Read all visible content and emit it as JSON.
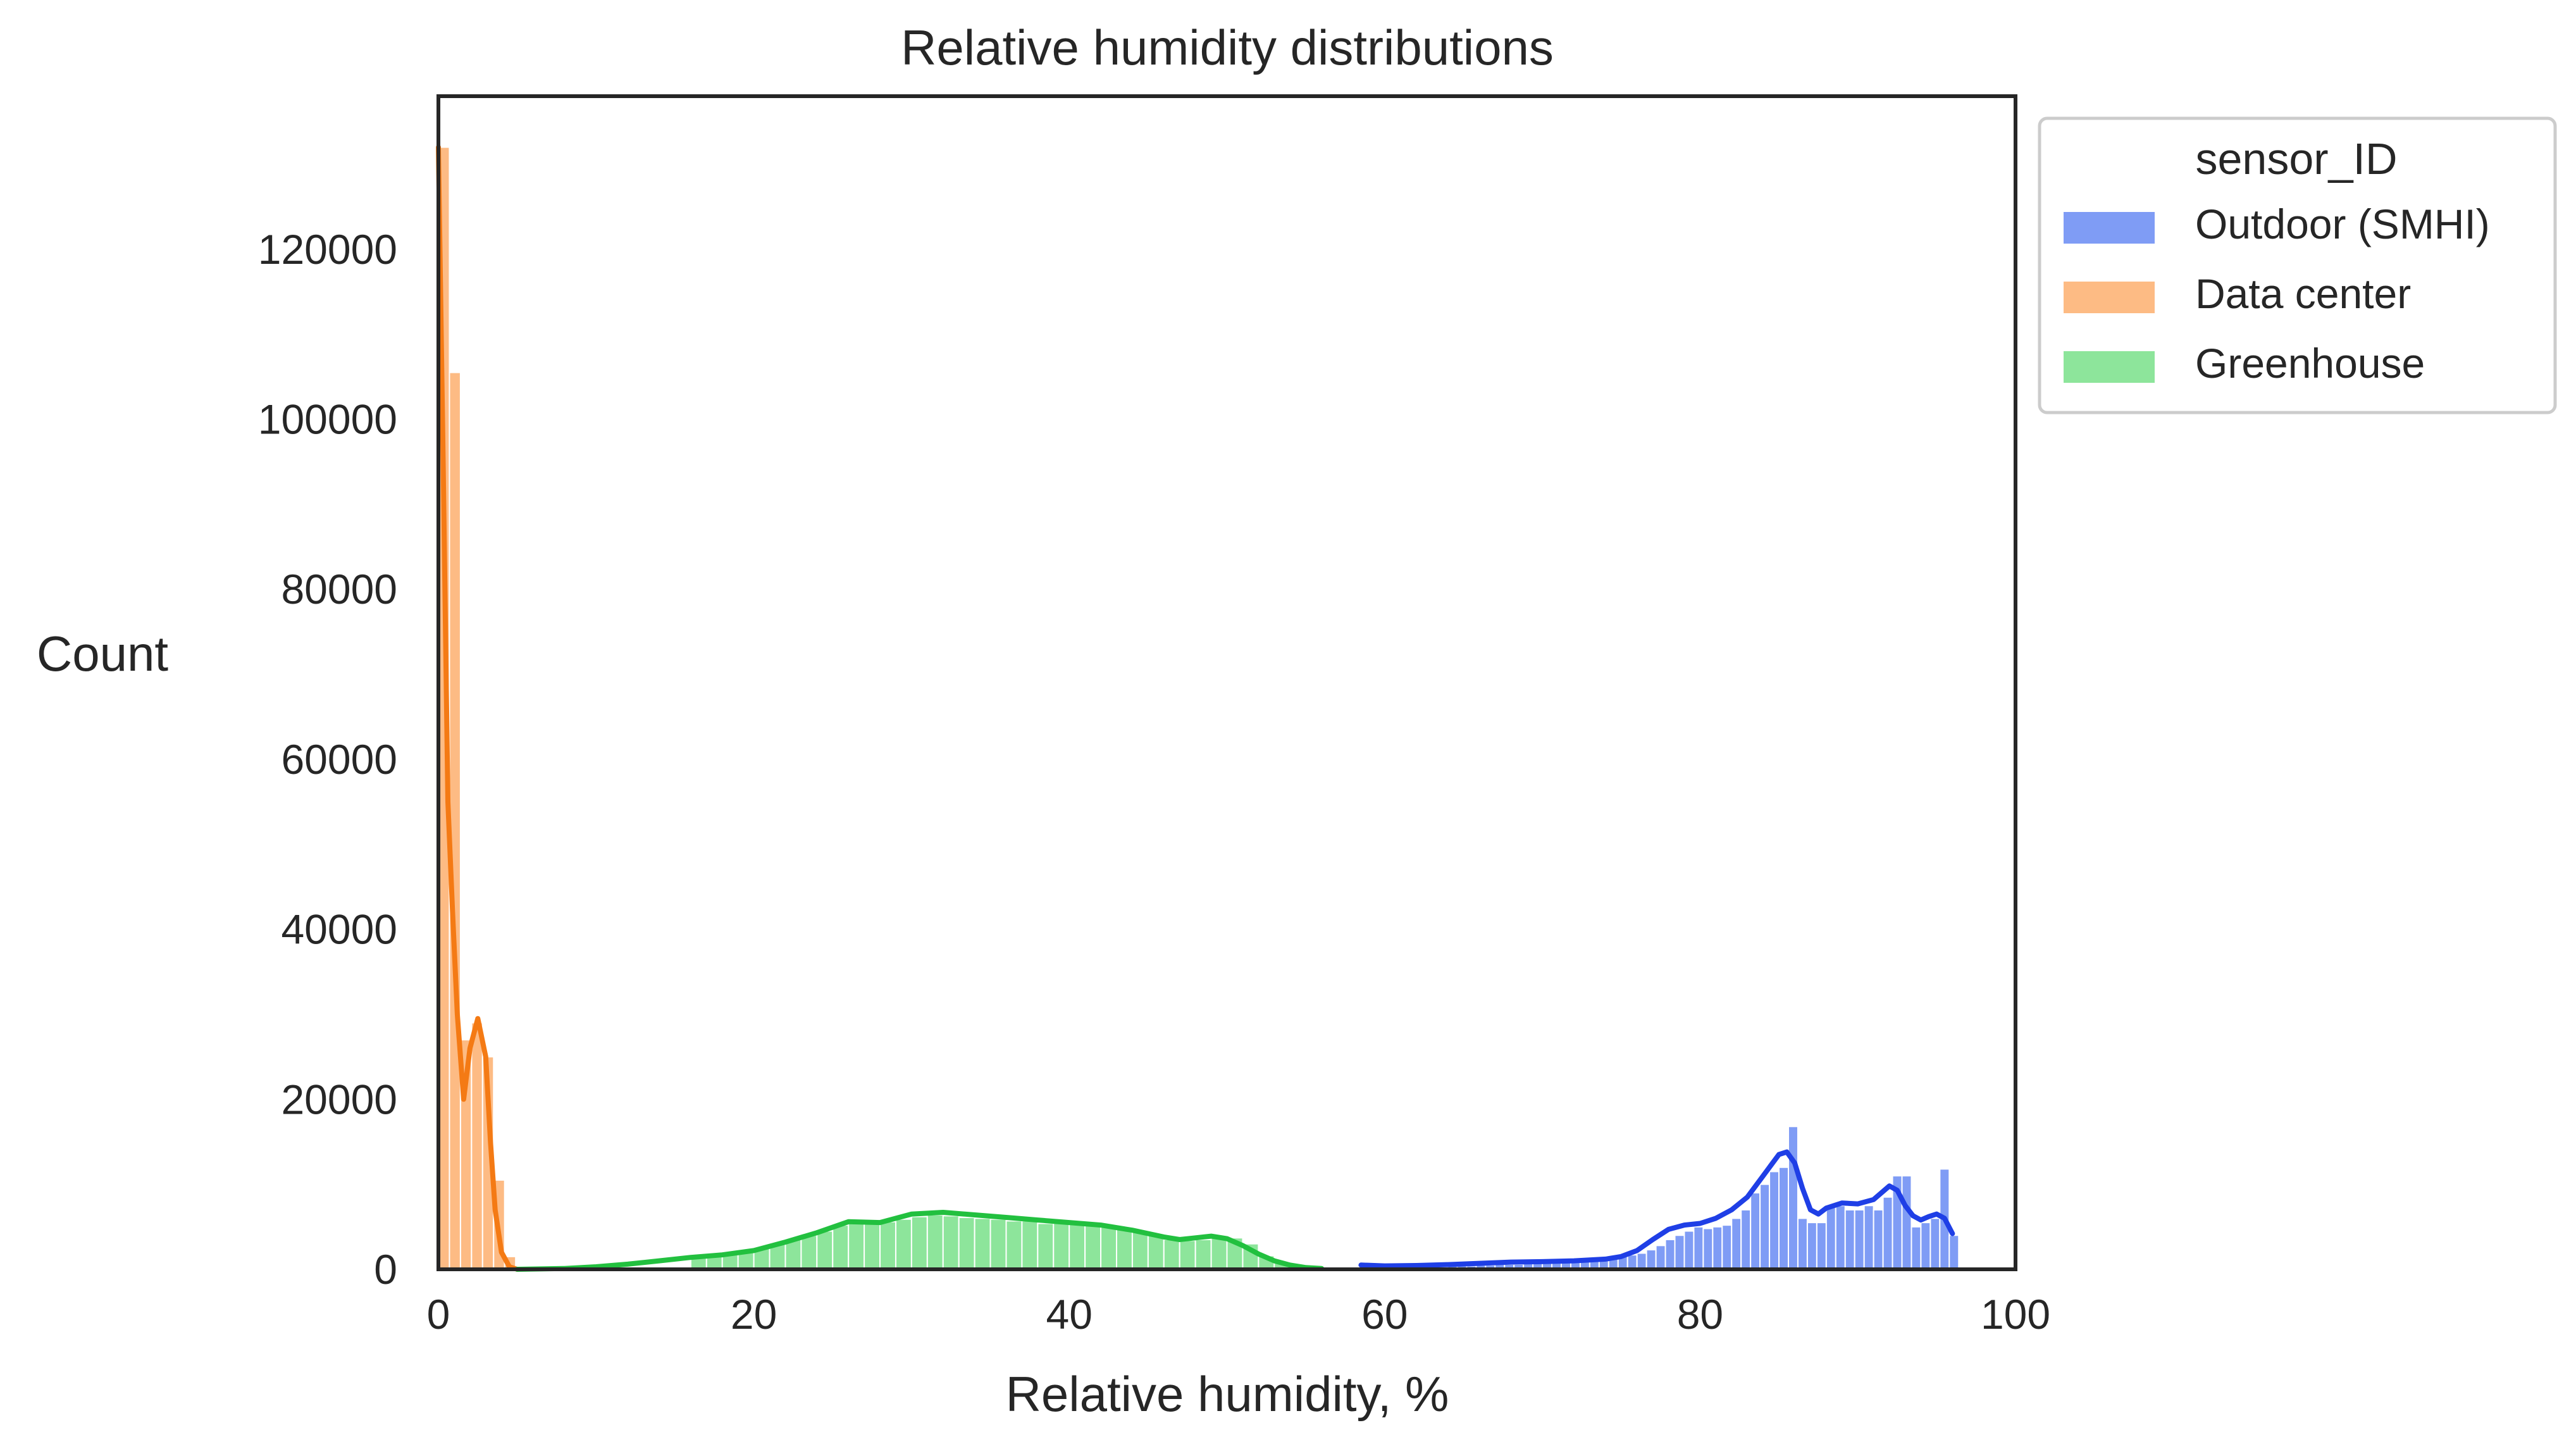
{
  "chart_data": {
    "type": "histogram",
    "title": "Relative humidity distributions",
    "xlabel": "Relative humidity, %",
    "ylabel": "Count",
    "xlim": [
      0,
      100
    ],
    "ylim": [
      0,
      138000
    ],
    "xticks": [
      0,
      20,
      40,
      60,
      80,
      100
    ],
    "yticks": [
      0,
      20000,
      40000,
      60000,
      80000,
      100000,
      120000
    ],
    "grid": false,
    "legend": {
      "title": "sensor_ID",
      "placement": "outside-top-right"
    },
    "series": [
      {
        "name": "Outdoor (SMHI)",
        "bar_color": "#7f9cf5",
        "kde_color": "#1f3fe6",
        "bins": [
          [
            58.6,
            59.2,
            300
          ],
          [
            59.2,
            59.8,
            300
          ],
          [
            59.8,
            60.4,
            300
          ],
          [
            60.4,
            61,
            200
          ],
          [
            61,
            61.6,
            200
          ],
          [
            61.6,
            62.2,
            300
          ],
          [
            62.2,
            62.8,
            300
          ],
          [
            62.8,
            63.4,
            300
          ],
          [
            63.4,
            64,
            300
          ],
          [
            64,
            64.6,
            400
          ],
          [
            64.6,
            65.2,
            400
          ],
          [
            65.2,
            65.8,
            400
          ],
          [
            65.8,
            66.4,
            500
          ],
          [
            66.4,
            67,
            500
          ],
          [
            67,
            67.6,
            600
          ],
          [
            67.6,
            68.2,
            600
          ],
          [
            68.2,
            68.8,
            600
          ],
          [
            68.8,
            69.4,
            700
          ],
          [
            69.4,
            70,
            700
          ],
          [
            70,
            70.6,
            800
          ],
          [
            70.6,
            71.2,
            800
          ],
          [
            71.2,
            71.8,
            900
          ],
          [
            71.8,
            72.4,
            1000
          ],
          [
            72.4,
            73,
            1100
          ],
          [
            73,
            73.6,
            1200
          ],
          [
            73.6,
            74.2,
            1300
          ],
          [
            74.2,
            74.8,
            1400
          ],
          [
            74.8,
            75.4,
            1500
          ],
          [
            75.4,
            76,
            1700
          ],
          [
            76,
            76.6,
            1900
          ],
          [
            76.6,
            77.2,
            2300
          ],
          [
            77.2,
            77.8,
            2800
          ],
          [
            77.8,
            78.4,
            3500
          ],
          [
            78.4,
            79,
            4000
          ],
          [
            79,
            79.6,
            4500
          ],
          [
            79.6,
            80.2,
            5000
          ],
          [
            80.2,
            80.8,
            4800
          ],
          [
            80.8,
            81.4,
            5000
          ],
          [
            81.4,
            82,
            5200
          ],
          [
            82,
            82.6,
            6000
          ],
          [
            82.6,
            83.2,
            7000
          ],
          [
            83.2,
            83.8,
            9000
          ],
          [
            83.8,
            84.4,
            10000
          ],
          [
            84.4,
            85,
            11500
          ],
          [
            85,
            85.6,
            12000
          ],
          [
            85.6,
            86.2,
            16800
          ],
          [
            86.2,
            86.8,
            6000
          ],
          [
            86.8,
            87.4,
            5500
          ],
          [
            87.4,
            88,
            5500
          ],
          [
            88,
            88.6,
            7500
          ],
          [
            88.6,
            89.2,
            7500
          ],
          [
            89.2,
            89.8,
            7000
          ],
          [
            89.8,
            90.4,
            7000
          ],
          [
            90.4,
            91,
            7500
          ],
          [
            91,
            91.6,
            7000
          ],
          [
            91.6,
            92.2,
            8500
          ],
          [
            92.2,
            92.8,
            11000
          ],
          [
            92.8,
            93.4,
            11000
          ],
          [
            93.4,
            94,
            5000
          ],
          [
            94,
            94.6,
            5500
          ],
          [
            94.6,
            95.2,
            6000
          ],
          [
            95.2,
            95.8,
            11800
          ],
          [
            95.8,
            96.4,
            4000
          ]
        ],
        "kde": [
          [
            58.5,
            500
          ],
          [
            60,
            400
          ],
          [
            62,
            450
          ],
          [
            64,
            550
          ],
          [
            66,
            700
          ],
          [
            68,
            850
          ],
          [
            70,
            900
          ],
          [
            72,
            1000
          ],
          [
            74,
            1200
          ],
          [
            75,
            1500
          ],
          [
            76,
            2200
          ],
          [
            77,
            3500
          ],
          [
            78,
            4700
          ],
          [
            79,
            5200
          ],
          [
            80,
            5400
          ],
          [
            81,
            6000
          ],
          [
            82,
            7000
          ],
          [
            83,
            8500
          ],
          [
            84,
            11000
          ],
          [
            85,
            13500
          ],
          [
            85.5,
            13800
          ],
          [
            86,
            12500
          ],
          [
            86.5,
            9500
          ],
          [
            87,
            7000
          ],
          [
            87.5,
            6500
          ],
          [
            88,
            7200
          ],
          [
            89,
            7800
          ],
          [
            90,
            7700
          ],
          [
            91,
            8200
          ],
          [
            91.5,
            9000
          ],
          [
            92,
            9800
          ],
          [
            92.5,
            9300
          ],
          [
            93,
            7500
          ],
          [
            93.5,
            6300
          ],
          [
            94,
            5800
          ],
          [
            94.5,
            6200
          ],
          [
            95,
            6500
          ],
          [
            95.5,
            6000
          ],
          [
            96,
            4200
          ]
        ]
      },
      {
        "name": "Data center",
        "bar_color": "#fdbb84",
        "kde_color": "#f47a14",
        "bins": [
          [
            0,
            0.7,
            132000
          ],
          [
            0.7,
            1.4,
            105500
          ],
          [
            1.4,
            2.1,
            27000
          ],
          [
            2.1,
            2.8,
            29000
          ],
          [
            2.8,
            3.5,
            25000
          ],
          [
            3.5,
            4.2,
            10500
          ],
          [
            4.2,
            4.9,
            1500
          ]
        ],
        "kde": [
          [
            0,
            132000
          ],
          [
            0.3,
            95000
          ],
          [
            0.6,
            55000
          ],
          [
            0.9,
            42000
          ],
          [
            1.2,
            30000
          ],
          [
            1.6,
            20000
          ],
          [
            2,
            26000
          ],
          [
            2.5,
            29500
          ],
          [
            3,
            25000
          ],
          [
            3.3,
            15000
          ],
          [
            3.6,
            7000
          ],
          [
            4,
            2000
          ],
          [
            4.5,
            300
          ],
          [
            5,
            0
          ]
        ]
      },
      {
        "name": "Greenhouse",
        "bar_color": "#8de59b",
        "kde_color": "#22c03f",
        "bins": [
          [
            16,
            17,
            1500
          ],
          [
            17,
            18,
            1700
          ],
          [
            18,
            19,
            1900
          ],
          [
            19,
            20,
            2100
          ],
          [
            20,
            21,
            2500
          ],
          [
            21,
            22,
            3000
          ],
          [
            22,
            23,
            3500
          ],
          [
            23,
            24,
            4000
          ],
          [
            24,
            25,
            4500
          ],
          [
            25,
            26,
            5200
          ],
          [
            26,
            27,
            5700
          ],
          [
            27,
            28,
            5800
          ],
          [
            28,
            29,
            5600
          ],
          [
            29,
            30,
            5900
          ],
          [
            30,
            31,
            6200
          ],
          [
            31,
            32,
            6400
          ],
          [
            32,
            33,
            6300
          ],
          [
            33,
            34,
            6100
          ],
          [
            34,
            35,
            6000
          ],
          [
            35,
            36,
            5900
          ],
          [
            36,
            37,
            5700
          ],
          [
            37,
            38,
            5700
          ],
          [
            38,
            39,
            5400
          ],
          [
            39,
            40,
            5500
          ],
          [
            40,
            41,
            5300
          ],
          [
            41,
            42,
            5200
          ],
          [
            42,
            43,
            5000
          ],
          [
            43,
            44,
            4700
          ],
          [
            44,
            45,
            4400
          ],
          [
            45,
            46,
            4000
          ],
          [
            46,
            47,
            3500
          ],
          [
            47,
            48,
            3400
          ],
          [
            48,
            49,
            3500
          ],
          [
            49,
            50,
            3800
          ],
          [
            50,
            51,
            3700
          ],
          [
            51,
            52,
            3000
          ],
          [
            52,
            53,
            1600
          ],
          [
            53,
            54,
            800
          ]
        ],
        "kde": [
          [
            5,
            0
          ],
          [
            8,
            100
          ],
          [
            10,
            300
          ],
          [
            12,
            600
          ],
          [
            14,
            1000
          ],
          [
            16,
            1400
          ],
          [
            18,
            1700
          ],
          [
            20,
            2200
          ],
          [
            22,
            3200
          ],
          [
            24,
            4300
          ],
          [
            26,
            5600
          ],
          [
            28,
            5500
          ],
          [
            30,
            6500
          ],
          [
            32,
            6700
          ],
          [
            34,
            6400
          ],
          [
            36,
            6100
          ],
          [
            38,
            5800
          ],
          [
            40,
            5500
          ],
          [
            42,
            5200
          ],
          [
            44,
            4600
          ],
          [
            46,
            3800
          ],
          [
            47,
            3500
          ],
          [
            48,
            3700
          ],
          [
            49,
            3900
          ],
          [
            50,
            3600
          ],
          [
            51,
            2800
          ],
          [
            52,
            1800
          ],
          [
            53,
            1000
          ],
          [
            54,
            500
          ],
          [
            55,
            200
          ],
          [
            56,
            100
          ]
        ]
      }
    ]
  }
}
